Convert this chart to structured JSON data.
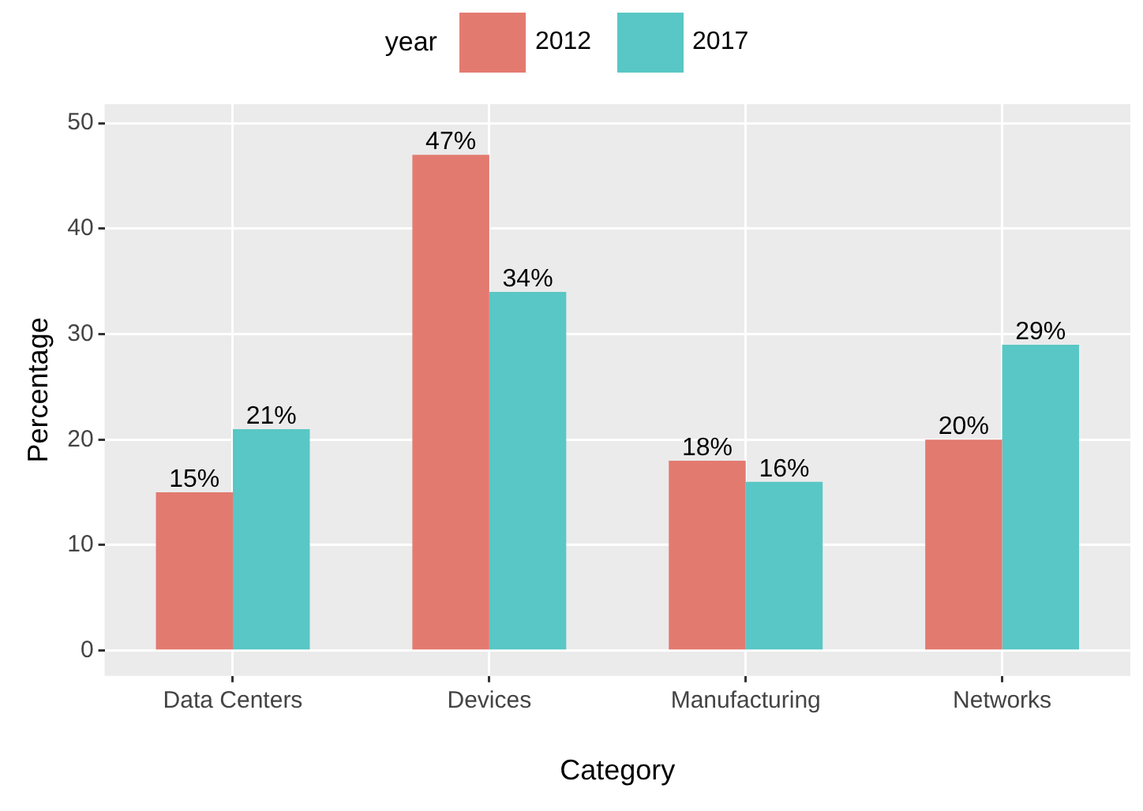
{
  "chart_data": {
    "type": "bar",
    "xlabel": "Category",
    "ylabel": "Percentage",
    "legend_title": "year",
    "categories": [
      "Data Centers",
      "Devices",
      "Manufacturing",
      "Networks"
    ],
    "series": [
      {
        "name": "2012",
        "color": "#e37a70",
        "values": [
          15,
          47,
          18,
          20
        ],
        "value_labels": [
          "15%",
          "47%",
          "18%",
          "20%"
        ]
      },
      {
        "name": "2017",
        "color": "#59c7c5",
        "values": [
          21,
          34,
          16,
          29
        ],
        "value_labels": [
          "21%",
          "34%",
          "16%",
          "29%"
        ]
      }
    ],
    "ylim": [
      -2.4,
      51.8
    ],
    "yticks": [
      0,
      10,
      20,
      30,
      40,
      50
    ],
    "grid": true,
    "legend": "top"
  }
}
